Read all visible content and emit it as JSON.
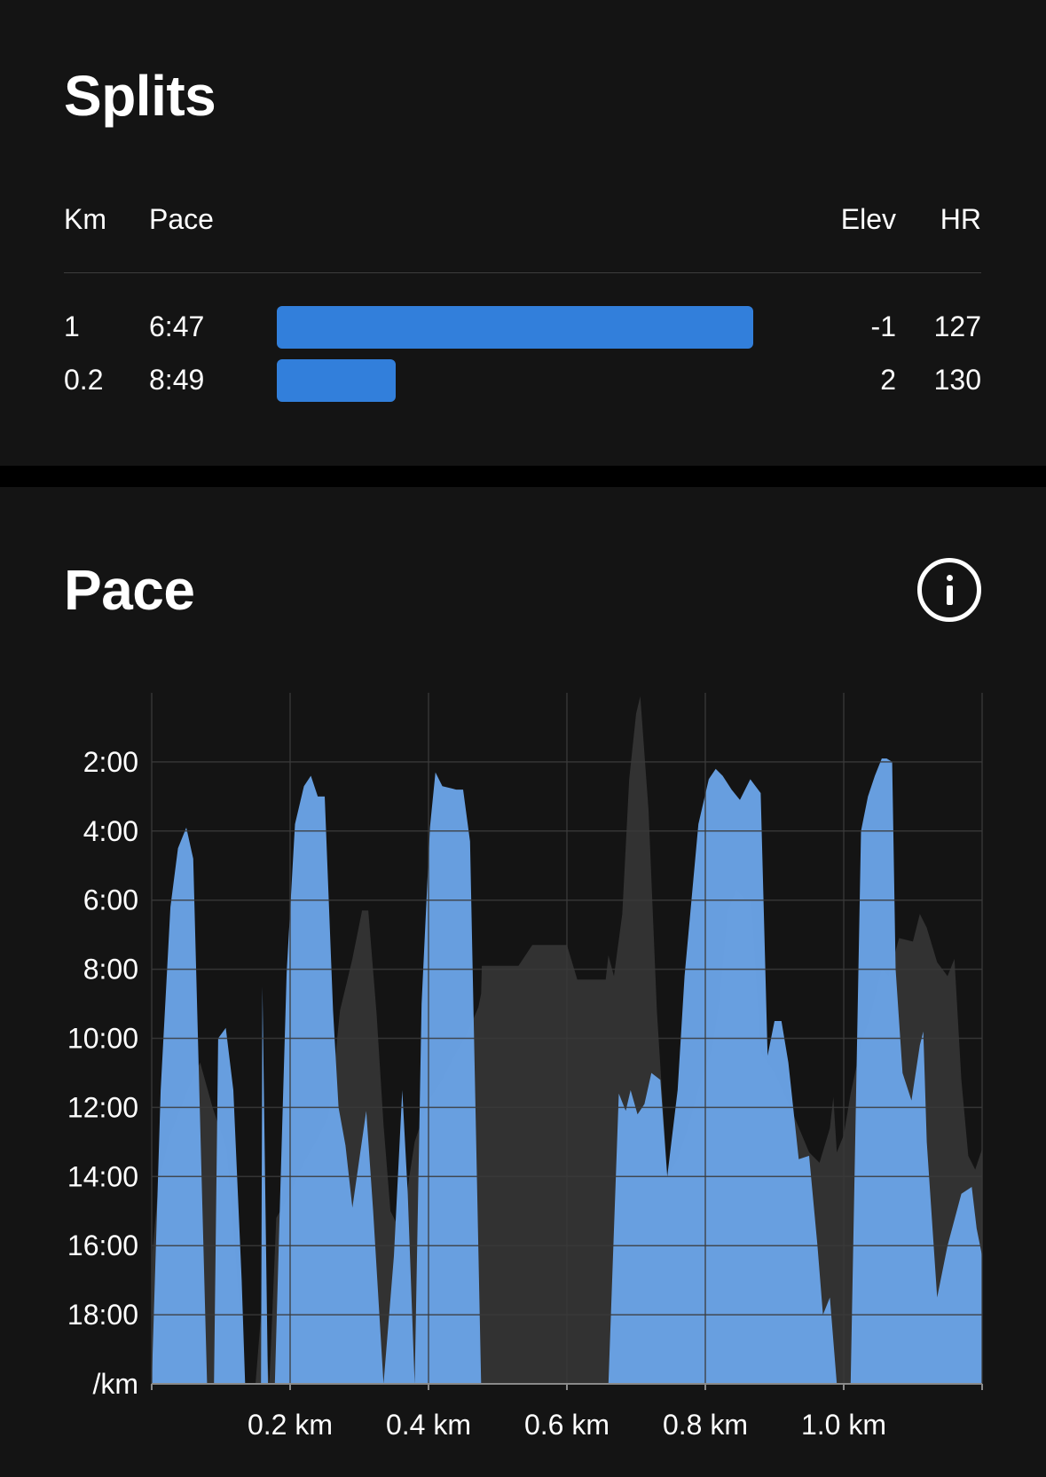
{
  "splits": {
    "title": "Splits",
    "headers": {
      "km": "Km",
      "pace": "Pace",
      "elev": "Elev",
      "hr": "HR"
    },
    "rows": [
      {
        "km": "1",
        "pace": "6:47",
        "elev": "-1",
        "hr": "127",
        "pace_bar_fraction": 1.0
      },
      {
        "km": "0.2",
        "pace": "8:49",
        "elev": "2",
        "hr": "130",
        "pace_bar_fraction": 0.25
      }
    ],
    "bar_color": "#327fdb"
  },
  "pace_section": {
    "title": "Pace",
    "info_icon": "info-circle-icon"
  },
  "chart_data": {
    "type": "area",
    "title": "",
    "xlabel": "",
    "ylabel": "/km",
    "x_tick_labels": [
      "0.2 km",
      "0.4 km",
      "0.6 km",
      "0.8 km",
      "1.0 km"
    ],
    "x_ticks": [
      0.2,
      0.4,
      0.6,
      0.8,
      1.0
    ],
    "y_tick_labels": [
      "2:00",
      "4:00",
      "6:00",
      "8:00",
      "10:00",
      "12:00",
      "14:00",
      "16:00",
      "18:00"
    ],
    "y_ticks": [
      2,
      4,
      6,
      8,
      10,
      12,
      14,
      16,
      18
    ],
    "xlim": [
      0,
      1.2
    ],
    "ylim": [
      0,
      20
    ],
    "y_inverted": true,
    "grid": true,
    "colors": {
      "pace": "#6aa3e6",
      "elevation": "#323232",
      "grid": "#3a3a3a"
    },
    "series": [
      {
        "key": "elevation",
        "values_min_per_km": [
          [
            0.0,
            20.0
          ],
          [
            0.001,
            16.2
          ],
          [
            0.01,
            14.2
          ],
          [
            0.025,
            12.9
          ],
          [
            0.05,
            11.6
          ],
          [
            0.07,
            10.7
          ],
          [
            0.088,
            12.0
          ],
          [
            0.108,
            13.2
          ],
          [
            0.12,
            16.0
          ],
          [
            0.135,
            20.0
          ],
          [
            0.15,
            20.0
          ],
          [
            0.16,
            17.5
          ],
          [
            0.17,
            20.0
          ],
          [
            0.18,
            15.2
          ],
          [
            0.2,
            14.5
          ],
          [
            0.22,
            13.6
          ],
          [
            0.24,
            12.9
          ],
          [
            0.255,
            12.3
          ],
          [
            0.262,
            11.2
          ],
          [
            0.272,
            9.2
          ],
          [
            0.29,
            7.7
          ],
          [
            0.304,
            6.3
          ],
          [
            0.313,
            6.3
          ],
          [
            0.325,
            9.3
          ],
          [
            0.335,
            12.5
          ],
          [
            0.345,
            15.0
          ],
          [
            0.36,
            15.6
          ],
          [
            0.38,
            13.0
          ],
          [
            0.4,
            11.8
          ],
          [
            0.42,
            11.2
          ],
          [
            0.435,
            10.6
          ],
          [
            0.455,
            9.9
          ],
          [
            0.472,
            9.1
          ],
          [
            0.476,
            8.7
          ],
          [
            0.477,
            7.9
          ],
          [
            0.494,
            7.9
          ],
          [
            0.53,
            7.9
          ],
          [
            0.55,
            7.3
          ],
          [
            0.555,
            7.3
          ],
          [
            0.59,
            7.3
          ],
          [
            0.6,
            7.3
          ],
          [
            0.615,
            8.3
          ],
          [
            0.63,
            8.3
          ],
          [
            0.656,
            8.3
          ],
          [
            0.66,
            7.6
          ],
          [
            0.668,
            8.2
          ],
          [
            0.68,
            6.4
          ],
          [
            0.69,
            2.5
          ],
          [
            0.7,
            0.6
          ],
          [
            0.706,
            0.1
          ],
          [
            0.718,
            3.4
          ],
          [
            0.73,
            9.2
          ],
          [
            0.745,
            14.0
          ],
          [
            0.76,
            13.5
          ],
          [
            0.775,
            12.6
          ],
          [
            0.79,
            11.5
          ],
          [
            0.81,
            10.3
          ],
          [
            0.82,
            9.0
          ],
          [
            0.833,
            6.3
          ],
          [
            0.845,
            5.7
          ],
          [
            0.858,
            6.0
          ],
          [
            0.866,
            6.0
          ],
          [
            0.88,
            10.4
          ],
          [
            0.9,
            11.0
          ],
          [
            0.925,
            12.1
          ],
          [
            0.95,
            13.3
          ],
          [
            0.965,
            13.6
          ],
          [
            0.98,
            12.6
          ],
          [
            0.985,
            11.7
          ],
          [
            0.99,
            13.3
          ],
          [
            1.0,
            12.8
          ],
          [
            1.01,
            11.6
          ],
          [
            1.025,
            10.2
          ],
          [
            1.038,
            9.4
          ],
          [
            1.055,
            8.0
          ],
          [
            1.065,
            8.2
          ],
          [
            1.08,
            7.1
          ],
          [
            1.1,
            7.2
          ],
          [
            1.11,
            6.4
          ],
          [
            1.12,
            6.8
          ],
          [
            1.135,
            7.8
          ],
          [
            1.15,
            8.2
          ],
          [
            1.16,
            7.7
          ],
          [
            1.17,
            11.2
          ],
          [
            1.18,
            13.4
          ],
          [
            1.19,
            13.8
          ],
          [
            1.2,
            13.2
          ],
          [
            1.2,
            20.0
          ]
        ]
      },
      {
        "key": "pace",
        "values_min_per_km": [
          [
            0.0,
            20.0
          ],
          [
            0.013,
            11.5
          ],
          [
            0.027,
            6.2
          ],
          [
            0.038,
            4.5
          ],
          [
            0.05,
            3.9
          ],
          [
            0.06,
            4.8
          ],
          [
            0.072,
            14.0
          ],
          [
            0.08,
            20.0
          ],
          [
            0.09,
            20.0
          ],
          [
            0.096,
            10.0
          ],
          [
            0.107,
            9.7
          ],
          [
            0.118,
            11.5
          ],
          [
            0.13,
            17.0
          ],
          [
            0.135,
            20.0
          ],
          [
            0.145,
            20.0
          ],
          [
            0.158,
            20.0
          ],
          [
            0.16,
            8.5
          ],
          [
            0.168,
            20.0
          ],
          [
            0.178,
            20.0
          ],
          [
            0.185,
            15.0
          ],
          [
            0.195,
            8.1
          ],
          [
            0.207,
            3.8
          ],
          [
            0.22,
            2.7
          ],
          [
            0.23,
            2.4
          ],
          [
            0.24,
            3.0
          ],
          [
            0.25,
            3.0
          ],
          [
            0.262,
            9.2
          ],
          [
            0.27,
            12.0
          ],
          [
            0.28,
            13.1
          ],
          [
            0.29,
            14.9
          ],
          [
            0.3,
            13.5
          ],
          [
            0.31,
            12.1
          ],
          [
            0.32,
            15.0
          ],
          [
            0.335,
            20.0
          ],
          [
            0.35,
            16.3
          ],
          [
            0.362,
            11.5
          ],
          [
            0.37,
            14.5
          ],
          [
            0.38,
            20.0
          ],
          [
            0.39,
            9.0
          ],
          [
            0.402,
            3.9
          ],
          [
            0.41,
            2.3
          ],
          [
            0.42,
            2.7
          ],
          [
            0.44,
            2.8
          ],
          [
            0.45,
            2.8
          ],
          [
            0.46,
            4.3
          ],
          [
            0.476,
            20.0
          ],
          [
            0.66,
            20.0
          ],
          [
            0.675,
            11.6
          ],
          [
            0.685,
            12.1
          ],
          [
            0.692,
            11.5
          ],
          [
            0.702,
            12.2
          ],
          [
            0.712,
            11.9
          ],
          [
            0.722,
            11.0
          ],
          [
            0.735,
            11.2
          ],
          [
            0.745,
            14.0
          ],
          [
            0.76,
            11.5
          ],
          [
            0.77,
            8.2
          ],
          [
            0.79,
            3.8
          ],
          [
            0.805,
            2.5
          ],
          [
            0.815,
            2.2
          ],
          [
            0.825,
            2.4
          ],
          [
            0.838,
            2.8
          ],
          [
            0.85,
            3.1
          ],
          [
            0.865,
            2.5
          ],
          [
            0.88,
            2.9
          ],
          [
            0.89,
            10.5
          ],
          [
            0.9,
            9.5
          ],
          [
            0.91,
            9.5
          ],
          [
            0.92,
            10.7
          ],
          [
            0.935,
            13.5
          ],
          [
            0.95,
            13.4
          ],
          [
            0.962,
            16.0
          ],
          [
            0.97,
            18.0
          ],
          [
            0.98,
            17.5
          ],
          [
            0.99,
            20.0
          ],
          [
            1.01,
            20.0
          ],
          [
            1.025,
            4.0
          ],
          [
            1.035,
            3.0
          ],
          [
            1.045,
            2.4
          ],
          [
            1.055,
            1.9
          ],
          [
            1.062,
            1.9
          ],
          [
            1.07,
            2.0
          ],
          [
            1.075,
            8.0
          ],
          [
            1.085,
            11.0
          ],
          [
            1.098,
            11.8
          ],
          [
            1.11,
            10.2
          ],
          [
            1.115,
            9.8
          ],
          [
            1.12,
            13.0
          ],
          [
            1.135,
            17.5
          ],
          [
            1.15,
            16.0
          ],
          [
            1.17,
            14.5
          ],
          [
            1.185,
            14.3
          ],
          [
            1.192,
            15.5
          ],
          [
            1.2,
            16.3
          ],
          [
            1.2,
            20.0
          ]
        ]
      }
    ]
  }
}
